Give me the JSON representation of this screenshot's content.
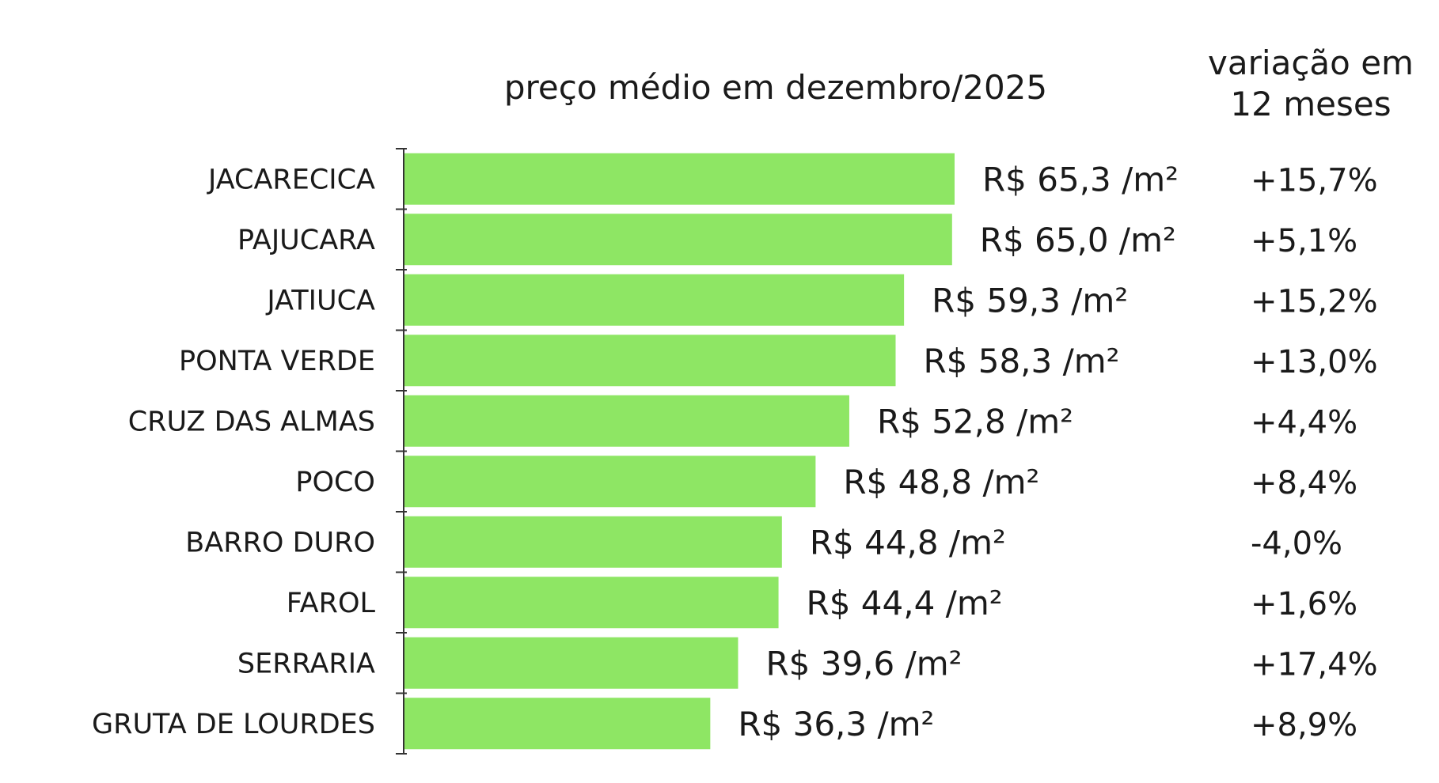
{
  "chart_data": {
    "type": "bar",
    "orientation": "horizontal",
    "title": "preço médio em dezembro/2025",
    "change_header": [
      "variação em",
      "12 meses"
    ],
    "categories": [
      "JACARECICA",
      "PAJUCARA",
      "JATIUCA",
      "PONTA VERDE",
      "CRUZ DAS ALMAS",
      "POCO",
      "BARRO DURO",
      "FAROL",
      "SERRARIA",
      "GRUTA DE LOURDES"
    ],
    "values": [
      65.3,
      65.0,
      59.3,
      58.3,
      52.8,
      48.8,
      44.8,
      44.4,
      39.6,
      36.3
    ],
    "value_labels": [
      "R$ 65,3 /m²",
      "R$ 65,0 /m²",
      "R$ 59,3 /m²",
      "R$ 58,3 /m²",
      "R$ 52,8 /m²",
      "R$ 48,8 /m²",
      "R$ 44,8 /m²",
      "R$ 44,4 /m²",
      "R$ 39,6 /m²",
      "R$ 36,3 /m²"
    ],
    "changes": [
      "+15,7%",
      "+5,1%",
      "+15,2%",
      "+13,0%",
      "+4,4%",
      "+8,4%",
      "-4,0%",
      "+1,6%",
      "+17,4%",
      "+8,9%"
    ],
    "bar_color": "#8ee664",
    "xlim": [
      0,
      65.3
    ],
    "grid": false,
    "legend": "none"
  }
}
